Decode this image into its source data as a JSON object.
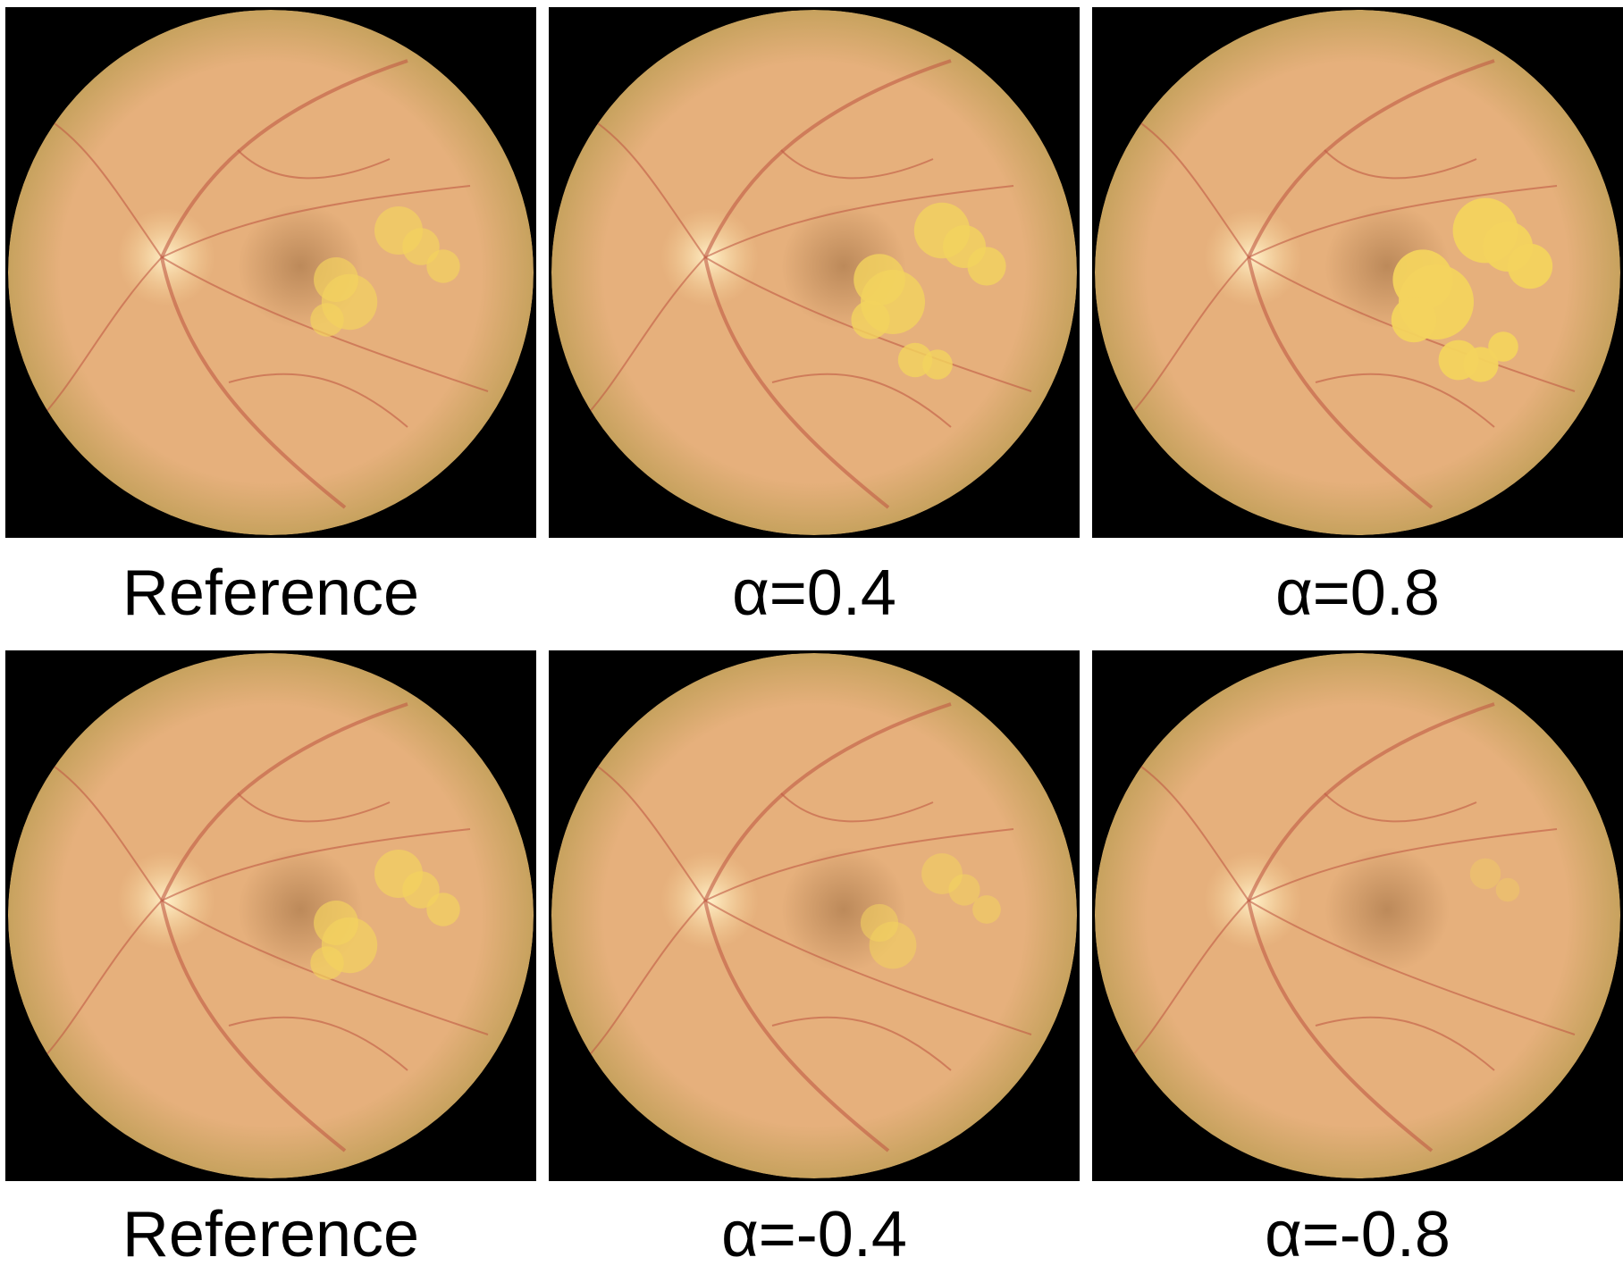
{
  "figure": {
    "rows": [
      {
        "panels": [
          {
            "caption": "Reference",
            "icon": "fundus-image",
            "lesion_extent": 0.55
          },
          {
            "caption": "α=0.4",
            "icon": "fundus-image",
            "lesion_extent": 0.75
          },
          {
            "caption": "α=0.8",
            "icon": "fundus-image",
            "lesion_extent": 1.0
          }
        ]
      },
      {
        "panels": [
          {
            "caption": "Reference",
            "icon": "fundus-image",
            "lesion_extent": 0.55
          },
          {
            "caption": "α=-0.4",
            "icon": "fundus-image",
            "lesion_extent": 0.35
          },
          {
            "caption": "α=-0.8",
            "icon": "fundus-image",
            "lesion_extent": 0.08
          }
        ]
      }
    ],
    "colors": {
      "background": "#ffffff",
      "panel_background": "#000000",
      "retina_center": "#e6b07c",
      "retina_edge": "#c7a25e",
      "optic_disc": "#f6d39a",
      "vessel": "#c05a45",
      "lesion": "#f3d35e"
    }
  }
}
